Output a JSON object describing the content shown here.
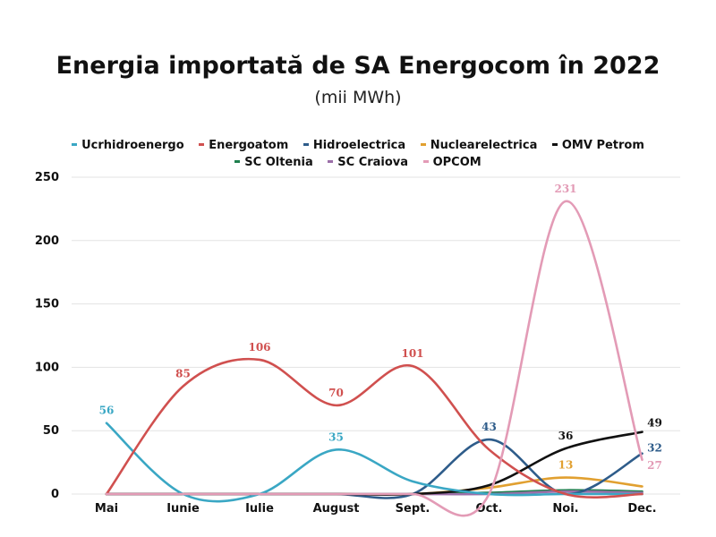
{
  "chart_data": {
    "type": "line",
    "title": "Energia importată de SA Energocom în 2022",
    "subtitle": "(mii MWh)",
    "categories": [
      "Mai",
      "Iunie",
      "Iulie",
      "August",
      "Sept.",
      "Oct.",
      "Noi.",
      "Dec."
    ],
    "ylim": [
      0,
      250
    ],
    "yticks": [
      "0",
      "50",
      "100",
      "150",
      "200",
      "250"
    ],
    "grid": true,
    "legend_position": "top",
    "series": [
      {
        "name": "Ucrhidroenergo",
        "color": "#3aa7c4",
        "values": [
          56,
          0,
          0,
          35,
          10,
          0,
          0,
          0
        ],
        "labels": [
          {
            "index": 0,
            "text": "56"
          },
          {
            "index": 3,
            "text": "35"
          }
        ]
      },
      {
        "name": "Energoatom",
        "color": "#d0504f",
        "values": [
          0,
          85,
          106,
          70,
          101,
          35,
          0,
          0
        ],
        "labels": [
          {
            "index": 1,
            "text": "85"
          },
          {
            "index": 2,
            "text": "106"
          },
          {
            "index": 3,
            "text": "70"
          },
          {
            "index": 4,
            "text": "101"
          }
        ]
      },
      {
        "name": "Hidroelectrica",
        "color": "#2e5c8a",
        "values": [
          0,
          0,
          0,
          0,
          0,
          43,
          0,
          32
        ],
        "labels": [
          {
            "index": 5,
            "text": "43"
          },
          {
            "index": 7,
            "text": "32"
          }
        ]
      },
      {
        "name": "Nuclearelectrica",
        "color": "#e1a030",
        "values": [
          0,
          0,
          0,
          0,
          0,
          5,
          13,
          6
        ],
        "labels": [
          {
            "index": 6,
            "text": "13"
          }
        ]
      },
      {
        "name": "OMV Petrom",
        "color": "#111111",
        "values": [
          0,
          0,
          0,
          0,
          0,
          7,
          36,
          49
        ],
        "labels": [
          {
            "index": 6,
            "text": "36"
          },
          {
            "index": 7,
            "text": "49"
          }
        ]
      },
      {
        "name": "SC Oltenia",
        "color": "#1e7f4e",
        "values": [
          0,
          0,
          0,
          0,
          0,
          1,
          3,
          2
        ],
        "labels": []
      },
      {
        "name": "SC Craiova",
        "color": "#9b6fa8",
        "values": [
          0,
          0,
          0,
          0,
          0,
          0,
          2,
          1
        ],
        "labels": []
      },
      {
        "name": "OPCOM",
        "color": "#e39bb6",
        "values": [
          0,
          0,
          0,
          0,
          0,
          0,
          231,
          27
        ],
        "labels": [
          {
            "index": 6,
            "text": "231"
          },
          {
            "index": 7,
            "text": "27"
          }
        ]
      }
    ]
  }
}
